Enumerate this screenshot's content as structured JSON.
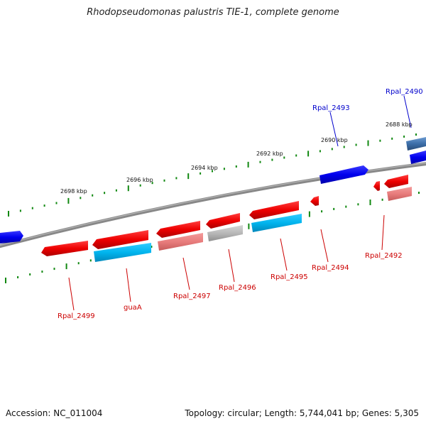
{
  "title": "Rhodopseudomonas palustris TIE-1, complete genome",
  "footer": {
    "accession": "Accession: NC_011004",
    "summary": "Topology: circular; Length: 5,744,041 bp; Genes: 5,305"
  },
  "colors": {
    "forward_gene": "#0000ee",
    "reverse_gene": "#ee0000",
    "cds_cyan": "#00bbee",
    "cds_pink": "#ee8888",
    "cds_grey": "#b8b8b8",
    "backbone": "#777777",
    "tick": "#118811",
    "label_blue": "#0000cc",
    "label_red": "#cc0000"
  },
  "ticks": [
    {
      "label": "2688 kbp"
    },
    {
      "label": "2690 kbp"
    },
    {
      "label": "2692 kbp"
    },
    {
      "label": "2694 kbp"
    },
    {
      "label": "2696 kbp"
    },
    {
      "label": "2698 kbp"
    }
  ],
  "gene_labels": [
    {
      "text": "Rpal_2490",
      "strand": "forward"
    },
    {
      "text": "Rpal_2493",
      "strand": "forward"
    },
    {
      "text": "Rpal_2492",
      "strand": "reverse"
    },
    {
      "text": "Rpal_2494",
      "strand": "reverse"
    },
    {
      "text": "Rpal_2495",
      "strand": "reverse"
    },
    {
      "text": "Rpal_2496",
      "strand": "reverse"
    },
    {
      "text": "Rpal_2497",
      "strand": "reverse"
    },
    {
      "text": "guaA",
      "strand": "reverse"
    },
    {
      "text": "Rpal_2499",
      "strand": "reverse"
    }
  ]
}
